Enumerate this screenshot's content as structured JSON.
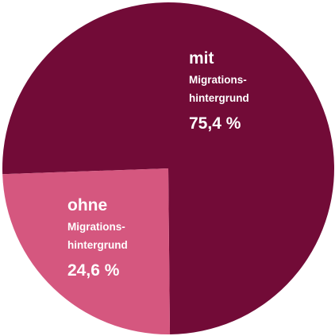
{
  "chart_data": {
    "type": "pie",
    "categories": [
      "mit",
      "ohne"
    ],
    "category_notes": [
      [
        "Migrations-",
        "hintergrund"
      ],
      [
        "Migrations-",
        "hintergrund"
      ]
    ],
    "values": [
      75.4,
      24.6
    ],
    "value_labels": [
      "75,4 %",
      "24,6 %"
    ],
    "colors": [
      "#720b37",
      "#d5577f"
    ]
  }
}
